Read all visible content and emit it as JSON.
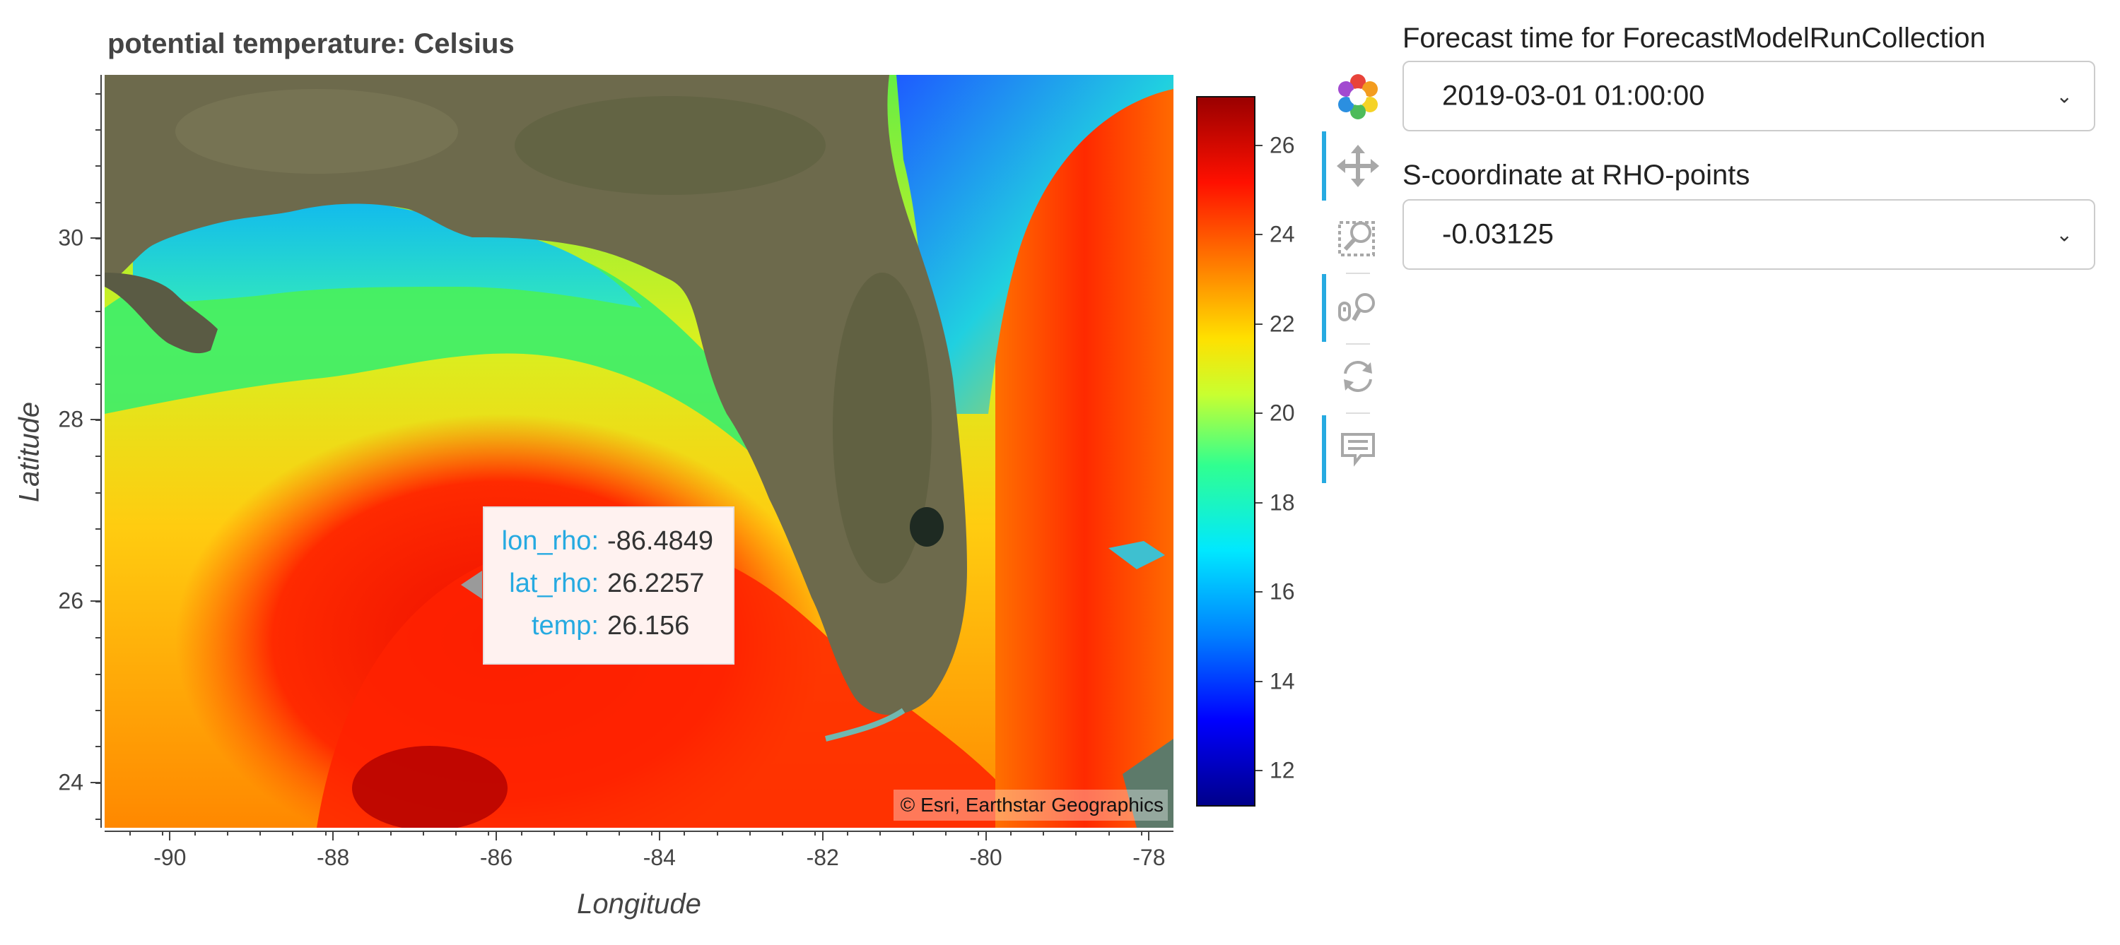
{
  "plot": {
    "title": "potential temperature: Celsius",
    "xlabel": "Longitude",
    "ylabel": "Latitude",
    "attribution": "© Esri, Earthstar Geographics"
  },
  "map_data": {
    "x_range": [
      -90.8,
      -77.7
    ],
    "y_range": [
      23.5,
      31.8
    ],
    "x_ticks": [
      -90,
      -88,
      -86,
      -84,
      -82,
      -80,
      -78
    ],
    "y_ticks": [
      24,
      26,
      28,
      30
    ],
    "x_tick_labels": [
      "-90",
      "-88",
      "-86",
      "-84",
      "-82",
      "-80",
      "-78"
    ],
    "y_tick_labels": [
      "24",
      "26",
      "28",
      "30"
    ],
    "colormap": "jet",
    "clim": [
      11.2,
      27.1
    ],
    "colorbar_ticks": [
      12,
      14,
      16,
      18,
      20,
      22,
      24,
      26
    ],
    "colorbar_tick_labels": [
      "12",
      "14",
      "16",
      "18",
      "20",
      "22",
      "24",
      "26"
    ],
    "land_color": "#6d6a4c",
    "basemap": "satellite imagery"
  },
  "tooltip": {
    "rows": [
      {
        "key": "lon_rho:",
        "value": "-86.4849"
      },
      {
        "key": "lat_rho:",
        "value": "26.2257"
      },
      {
        "key": "temp:",
        "value": "26.156"
      }
    ]
  },
  "toolbar": {
    "tools": [
      {
        "name": "bokeh-logo-icon",
        "active": false
      },
      {
        "name": "pan-icon",
        "active": true
      },
      {
        "name": "box-zoom-icon",
        "active": false
      },
      {
        "name": "wheel-zoom-icon",
        "active": true
      },
      {
        "name": "reset-icon",
        "active": false
      },
      {
        "name": "hover-icon",
        "active": true
      }
    ]
  },
  "widgets": {
    "forecast_time": {
      "label": "Forecast time for ForecastModelRunCollection",
      "value": "2019-03-01 01:00:00"
    },
    "s_coordinate": {
      "label": "S-coordinate at RHO-points",
      "value": "-0.03125"
    }
  }
}
